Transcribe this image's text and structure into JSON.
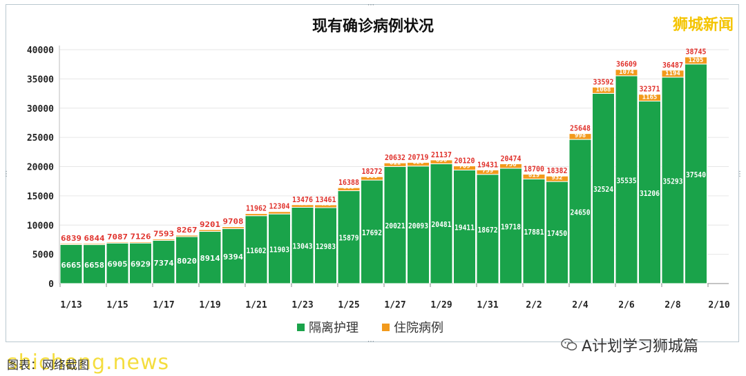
{
  "header": {
    "title": "现有确诊病例状况",
    "brand": "狮城新闻"
  },
  "legend": [
    {
      "label": "隔离护理",
      "color": "#1aa34a"
    },
    {
      "label": "住院病例",
      "color": "#f29a1c"
    }
  ],
  "footer": {
    "wechat_label": "A计划学习狮城篇",
    "caption": "图表：网络截图",
    "watermark": "shicheng.news"
  },
  "chart_data": {
    "type": "bar",
    "stacked": true,
    "categories": [
      "1/13",
      "1/14",
      "1/15",
      "1/16",
      "1/17",
      "1/18",
      "1/19",
      "1/20",
      "1/21",
      "1/22",
      "1/23",
      "1/24",
      "1/25",
      "1/26",
      "1/27",
      "1/28",
      "1/29",
      "1/30",
      "1/31",
      "2/1",
      "2/2",
      "2/3",
      "2/4",
      "2/5",
      "2/6",
      "2/7",
      "2/8",
      "2/9"
    ],
    "x_tick_labels": [
      "1/13",
      "1/15",
      "1/17",
      "1/19",
      "1/21",
      "1/23",
      "1/25",
      "1/27",
      "1/29",
      "1/31",
      "2/2",
      "2/4",
      "2/6",
      "2/8",
      "2/10"
    ],
    "y_ticks": [
      0,
      5000,
      10000,
      15000,
      20000,
      25000,
      30000,
      35000,
      40000
    ],
    "ylim": [
      0,
      40000
    ],
    "series": [
      {
        "name": "隔离护理",
        "color": "#1aa34a",
        "values": [
          6665,
          6658,
          6905,
          6929,
          7374,
          8020,
          8914,
          9394,
          11602,
          11903,
          13043,
          12983,
          15879,
          17692,
          20021,
          20093,
          20481,
          19411,
          18672,
          19718,
          17881,
          17450,
          24650,
          32524,
          35535,
          31206,
          35293,
          37540
        ]
      },
      {
        "name": "住院病例",
        "color": "#f29a1c",
        "values": [
          174,
          186,
          182,
          197,
          219,
          247,
          287,
          314,
          360,
          401,
          433,
          478,
          509,
          580,
          611,
          626,
          656,
          709,
          759,
          756,
          819,
          932,
          998,
          1068,
          1074,
          1165,
          1194,
          1205
        ]
      }
    ],
    "totals": [
      6839,
      6844,
      7087,
      7126,
      7593,
      8267,
      9201,
      9708,
      11962,
      12304,
      13476,
      13461,
      16388,
      18272,
      20632,
      20719,
      21137,
      20120,
      19431,
      20474,
      18700,
      18382,
      25648,
      33592,
      36609,
      32371,
      36487,
      38745
    ],
    "total_label_color": "#e0312b"
  }
}
